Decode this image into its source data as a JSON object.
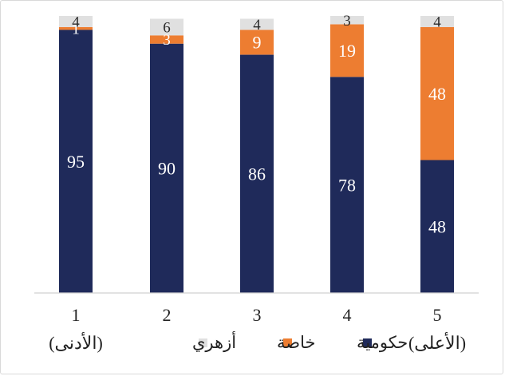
{
  "chart_data": {
    "type": "bar",
    "stacked": true,
    "normalized_to": 100,
    "title": "",
    "xlabel": "",
    "ylabel": "",
    "ylim": [
      0,
      100
    ],
    "grid": false,
    "legend_position": "bottom",
    "categories": [
      {
        "line1": "1",
        "line2": "(الأدنى)"
      },
      {
        "line1": "2",
        "line2": ""
      },
      {
        "line1": "3",
        "line2": ""
      },
      {
        "line1": "4",
        "line2": ""
      },
      {
        "line1": "5",
        "line2": "(الأعلى)"
      }
    ],
    "series": [
      {
        "name": "حكومية",
        "color": "#1f2a5a",
        "values": [
          95,
          90,
          86,
          78,
          48
        ],
        "label_color": "#ffffff"
      },
      {
        "name": "خاصة",
        "color": "#ed7d31",
        "values": [
          1,
          3,
          9,
          19,
          48
        ],
        "label_color": "#ffffff"
      },
      {
        "name": "أزهري",
        "color": "#e0e0e0",
        "values": [
          4,
          6,
          4,
          3,
          4
        ],
        "label_color": "#2b2b2b"
      }
    ]
  }
}
